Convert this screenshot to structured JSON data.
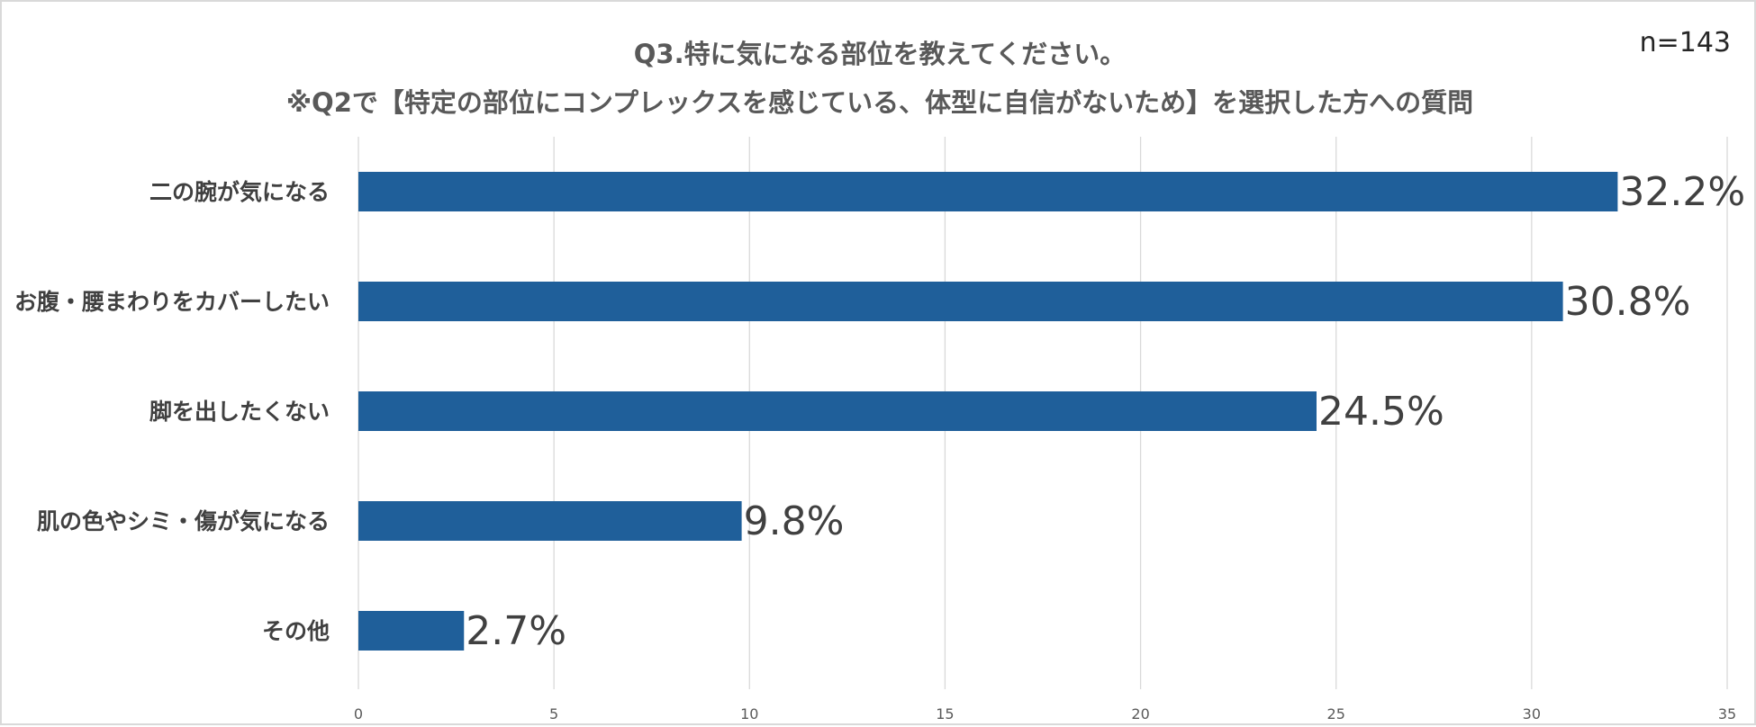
{
  "chart_data": {
    "type": "bar",
    "orientation": "horizontal",
    "title": "Q3.特に気になる部位を教えてください。",
    "subtitle": "※Q2で【特定の部位にコンプレックスを感じている、体型に自信がないため】を選択した方への質問",
    "sample_size": "n=143",
    "categories": [
      "二の腕が気になる",
      "お腹・腰まわりをカバーしたい",
      "脚を出したくない",
      "肌の色やシミ・傷が気になる",
      "その他"
    ],
    "values": [
      32.2,
      30.8,
      24.5,
      9.8,
      2.7
    ],
    "data_labels": [
      "32.2%",
      "30.8%",
      "24.5%",
      "9.8%",
      "2.7%"
    ],
    "xlim": [
      0,
      35
    ],
    "x_ticks": [
      0,
      5,
      10,
      15,
      20,
      25,
      30,
      35
    ],
    "x_tick_labels": [
      "0",
      "5",
      "10",
      "15",
      "20",
      "25",
      "30",
      "35"
    ],
    "grid": true,
    "legend": "none",
    "bar_color": "#1f5f9a"
  }
}
